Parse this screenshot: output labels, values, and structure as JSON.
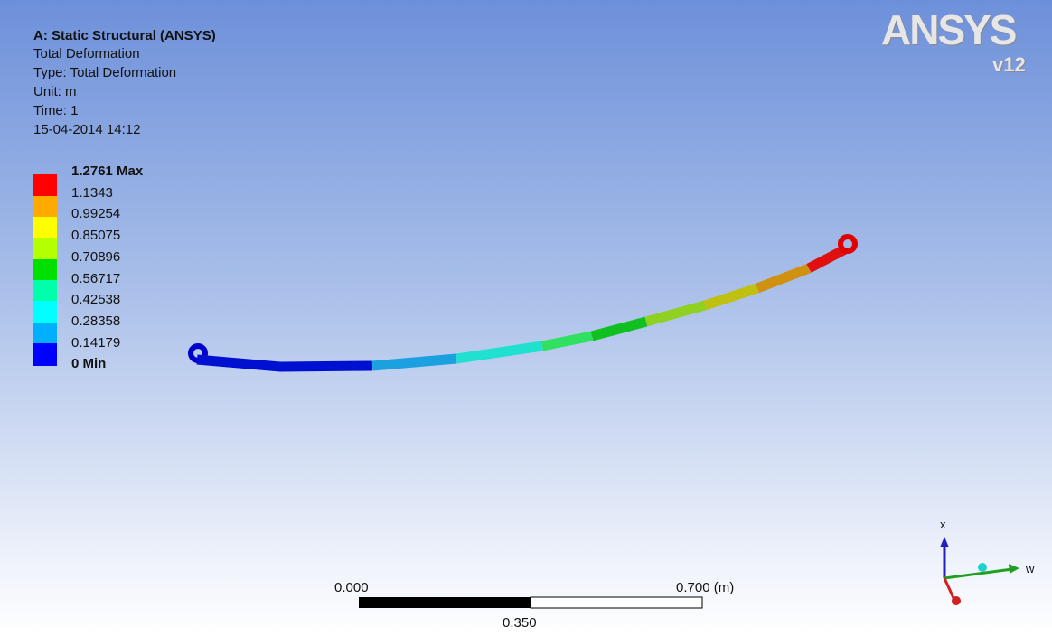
{
  "header": {
    "title": "A: Static Structural (ANSYS)",
    "lines": [
      "Total Deformation",
      "Type: Total Deformation",
      "Unit: m",
      "Time: 1",
      "15-04-2014 14:12"
    ]
  },
  "legend": {
    "labels": [
      "1.2761 Max",
      "1.1343",
      "0.99254",
      "0.85075",
      "0.70896",
      "0.56717",
      "0.42538",
      "0.28358",
      "0.14179",
      "0 Min"
    ]
  },
  "logo": {
    "brand": "ANSYS",
    "version": "v12"
  },
  "scale_bar": {
    "start": "0.000",
    "end": "0.700 (m)",
    "middle": "0.350"
  },
  "triad": {
    "x_label": "x",
    "w_label": "w"
  }
}
